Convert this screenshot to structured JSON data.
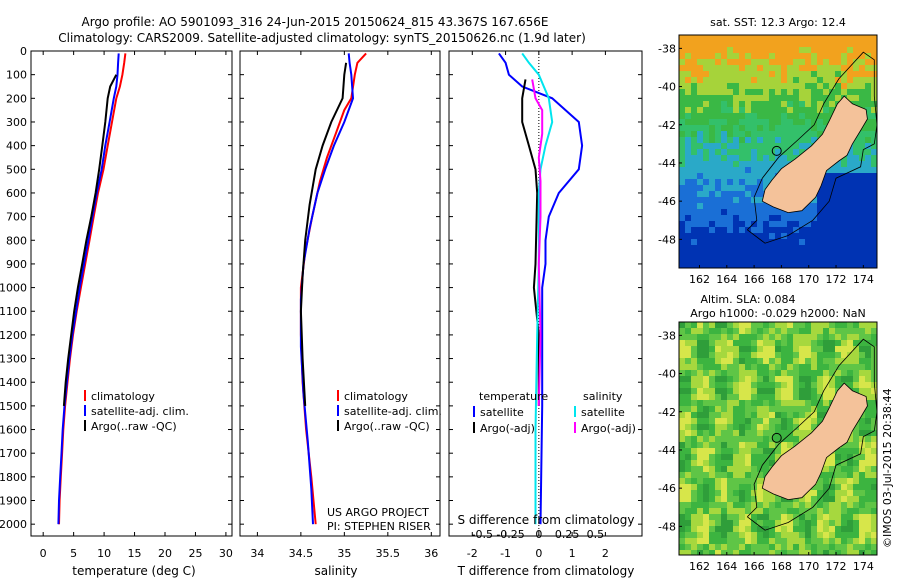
{
  "header": {
    "line1": "Argo profile: AO 5901093_316 24-Jun-2015 20150624_815 43.367S 167.656E",
    "line2": "Climatology: CARS2009. Satellite-adjusted climatology: synTS_20150626.nc (1.9d later)"
  },
  "credit": "©IMOS 03-Jul-2015 20:38:44",
  "colors": {
    "climatology": "#ff0000",
    "satellite": "#0000ff",
    "argo": "#000000",
    "satellite_s": "#00e5ee",
    "argo_s": "#ff00ff",
    "land": "#f4c29a"
  },
  "chart_data": [
    {
      "type": "line",
      "xlabel": "temperature (deg C)",
      "xlim": [
        -2,
        31
      ],
      "ylim": [
        2050,
        0
      ],
      "xticks": [
        "0",
        "5",
        "10",
        "15",
        "20",
        "25",
        "30"
      ],
      "yticks": [
        "0",
        "100",
        "200",
        "300",
        "400",
        "500",
        "600",
        "700",
        "800",
        "900",
        "1000",
        "1100",
        "1200",
        "1300",
        "1400",
        "1500",
        "1600",
        "1700",
        "1800",
        "1900",
        "2000"
      ],
      "legend": [
        "climatology",
        "satellite-adj. clim.",
        "Argo(..raw -QC)"
      ],
      "series": [
        {
          "name": "climatology",
          "color": "#ff0000",
          "points": [
            [
              13.5,
              10
            ],
            [
              13.3,
              50
            ],
            [
              13.0,
              100
            ],
            [
              12.6,
              150
            ],
            [
              12.0,
              200
            ],
            [
              11.3,
              300
            ],
            [
              10.6,
              400
            ],
            [
              9.9,
              500
            ],
            [
              9.0,
              600
            ],
            [
              8.3,
              700
            ],
            [
              7.6,
              800
            ],
            [
              6.9,
              900
            ],
            [
              6.2,
              1000
            ],
            [
              5.5,
              1100
            ],
            [
              4.9,
              1200
            ],
            [
              4.4,
              1300
            ],
            [
              4.0,
              1400
            ],
            [
              3.6,
              1500
            ],
            [
              3.3,
              1600
            ],
            [
              3.1,
              1700
            ],
            [
              2.9,
              1800
            ],
            [
              2.7,
              1900
            ],
            [
              2.6,
              2000
            ]
          ]
        },
        {
          "name": "satellite-adj. clim.",
          "color": "#0000ff",
          "points": [
            [
              12.4,
              10
            ],
            [
              12.3,
              50
            ],
            [
              12.2,
              100
            ],
            [
              12.0,
              150
            ],
            [
              11.6,
              200
            ],
            [
              10.9,
              300
            ],
            [
              10.2,
              400
            ],
            [
              9.6,
              500
            ],
            [
              8.8,
              600
            ],
            [
              8.1,
              700
            ],
            [
              7.4,
              800
            ],
            [
              6.7,
              900
            ],
            [
              6.0,
              1000
            ],
            [
              5.4,
              1100
            ],
            [
              4.8,
              1200
            ],
            [
              4.3,
              1300
            ],
            [
              3.9,
              1400
            ],
            [
              3.5,
              1500
            ],
            [
              3.2,
              1600
            ],
            [
              3.0,
              1700
            ],
            [
              2.8,
              1800
            ],
            [
              2.6,
              1900
            ],
            [
              2.5,
              2000
            ]
          ]
        },
        {
          "name": "Argo(..raw -QC)",
          "color": "#000000",
          "points": [
            [
              12.0,
              100
            ],
            [
              11.0,
              150
            ],
            [
              10.6,
              200
            ],
            [
              10.2,
              300
            ],
            [
              9.7,
              400
            ],
            [
              9.2,
              500
            ],
            [
              8.6,
              600
            ],
            [
              7.9,
              700
            ],
            [
              7.1,
              800
            ],
            [
              6.4,
              900
            ],
            [
              5.7,
              1000
            ],
            [
              5.1,
              1100
            ],
            [
              4.6,
              1200
            ],
            [
              4.1,
              1300
            ],
            [
              3.7,
              1400
            ],
            [
              3.4,
              1500
            ]
          ]
        }
      ]
    },
    {
      "type": "line",
      "xlabel": "salinity",
      "xlim": [
        33.8,
        36.1
      ],
      "ylim": [
        2050,
        0
      ],
      "xticks": [
        "34",
        "34.5",
        "35",
        "35.5",
        "36"
      ],
      "legend": [
        "climatology",
        "satellite-adj. clim.",
        "Argo(..raw -QC)"
      ],
      "annotation": [
        "US ARGO PROJECT",
        "PI: STEPHEN RISER"
      ],
      "series": [
        {
          "name": "climatology",
          "color": "#ff0000",
          "points": [
            [
              35.25,
              10
            ],
            [
              35.15,
              50
            ],
            [
              35.12,
              100
            ],
            [
              35.08,
              200
            ],
            [
              35.0,
              250
            ],
            [
              34.9,
              350
            ],
            [
              34.8,
              450
            ],
            [
              34.72,
              550
            ],
            [
              34.63,
              700
            ],
            [
              34.55,
              850
            ],
            [
              34.5,
              1000
            ],
            [
              34.5,
              1200
            ],
            [
              34.52,
              1400
            ],
            [
              34.56,
              1600
            ],
            [
              34.62,
              1800
            ],
            [
              34.67,
              2000
            ]
          ]
        },
        {
          "name": "satellite-adj. clim.",
          "color": "#0000ff",
          "points": [
            [
              35.05,
              10
            ],
            [
              35.06,
              50
            ],
            [
              35.08,
              100
            ],
            [
              35.1,
              200
            ],
            [
              35.0,
              300
            ],
            [
              34.88,
              400
            ],
            [
              34.78,
              500
            ],
            [
              34.69,
              600
            ],
            [
              34.6,
              750
            ],
            [
              34.53,
              900
            ],
            [
              34.5,
              1050
            ],
            [
              34.5,
              1250
            ],
            [
              34.53,
              1450
            ],
            [
              34.58,
              1650
            ],
            [
              34.62,
              1850
            ],
            [
              34.64,
              2000
            ]
          ]
        },
        {
          "name": "Argo(..raw -QC)",
          "color": "#000000",
          "points": [
            [
              35.02,
              50
            ],
            [
              35.0,
              100
            ],
            [
              34.98,
              200
            ],
            [
              34.85,
              300
            ],
            [
              34.75,
              400
            ],
            [
              34.67,
              500
            ],
            [
              34.6,
              650
            ],
            [
              34.55,
              800
            ],
            [
              34.52,
              950
            ],
            [
              34.5,
              1100
            ],
            [
              34.52,
              1300
            ],
            [
              34.55,
              1500
            ]
          ]
        }
      ]
    },
    {
      "type": "line",
      "xlabel": "T difference from climatology",
      "xlabel2": "S difference from climatology",
      "xlim": [
        -2.7,
        3.1
      ],
      "ylim": [
        2050,
        0
      ],
      "xticks": [
        "-2",
        "-1",
        "0",
        "1",
        "2"
      ],
      "xticks2": [
        "-0.5",
        "-0.25",
        "0",
        "0.25",
        "0.5"
      ],
      "legend_t": {
        "heading": "temperature",
        "items": [
          "satellite",
          "Argo(-adj)"
        ]
      },
      "legend_s": {
        "heading": "salinity",
        "items": [
          "satellite",
          "Argo(-adj)"
        ]
      },
      "series": [
        {
          "name": "satellite (T)",
          "color": "#0000ff",
          "points": [
            [
              -1.2,
              10
            ],
            [
              -1.0,
              50
            ],
            [
              -0.9,
              100
            ],
            [
              -0.5,
              150
            ],
            [
              0.4,
              200
            ],
            [
              1.2,
              300
            ],
            [
              1.3,
              400
            ],
            [
              1.2,
              500
            ],
            [
              0.6,
              600
            ],
            [
              0.3,
              700
            ],
            [
              0.2,
              800
            ],
            [
              0.2,
              900
            ],
            [
              0.1,
              1000
            ],
            [
              0.1,
              1200
            ],
            [
              0.1,
              1500
            ],
            [
              0.05,
              2000
            ]
          ]
        },
        {
          "name": "Argo(-adj) (T)",
          "color": "#000000",
          "points": [
            [
              -0.4,
              120
            ],
            [
              -0.5,
              200
            ],
            [
              -0.5,
              300
            ],
            [
              -0.3,
              400
            ],
            [
              -0.1,
              500
            ],
            [
              -0.05,
              600
            ],
            [
              -0.1,
              900
            ],
            [
              -0.15,
              1000
            ],
            [
              0.0,
              1200
            ],
            [
              0.0,
              1500
            ]
          ]
        },
        {
          "name": "satellite (S)",
          "color": "#00e5ee",
          "points": [
            [
              -0.5,
              10
            ],
            [
              -0.3,
              50
            ],
            [
              0.0,
              100
            ],
            [
              0.3,
              200
            ],
            [
              0.4,
              300
            ],
            [
              0.2,
              400
            ],
            [
              0.05,
              500
            ],
            [
              0.0,
              600
            ],
            [
              0.0,
              900
            ],
            [
              -0.05,
              1200
            ],
            [
              -0.1,
              1600
            ],
            [
              -0.1,
              2000
            ]
          ]
        },
        {
          "name": "Argo(-adj) (S)",
          "color": "#ff00ff",
          "points": [
            [
              -0.2,
              120
            ],
            [
              -0.1,
              200
            ],
            [
              0.1,
              250
            ],
            [
              0.1,
              350
            ],
            [
              0.0,
              450
            ],
            [
              0.05,
              550
            ],
            [
              0.05,
              700
            ],
            [
              0.0,
              900
            ],
            [
              0.05,
              1200
            ],
            [
              0.0,
              1500
            ]
          ]
        }
      ]
    }
  ],
  "maps": [
    {
      "title": "sat. SST: 12.3 Argo: 12.4",
      "xticks": [
        "162",
        "164",
        "166",
        "168",
        "170",
        "172",
        "174"
      ],
      "yticks": [
        "-38",
        "-40",
        "-42",
        "-44",
        "-46",
        "-48"
      ],
      "kind": "sst",
      "argo_pos": [
        167.656,
        -43.367
      ]
    },
    {
      "title1": "Altim. SLA: 0.084",
      "title2": "Argo h1000: -0.029 h2000: NaN",
      "xticks": [
        "162",
        "164",
        "166",
        "168",
        "170",
        "172",
        "174"
      ],
      "yticks": [
        "-38",
        "-40",
        "-42",
        "-44",
        "-46",
        "-48"
      ],
      "kind": "sla",
      "argo_pos": [
        167.656,
        -43.367
      ]
    }
  ]
}
